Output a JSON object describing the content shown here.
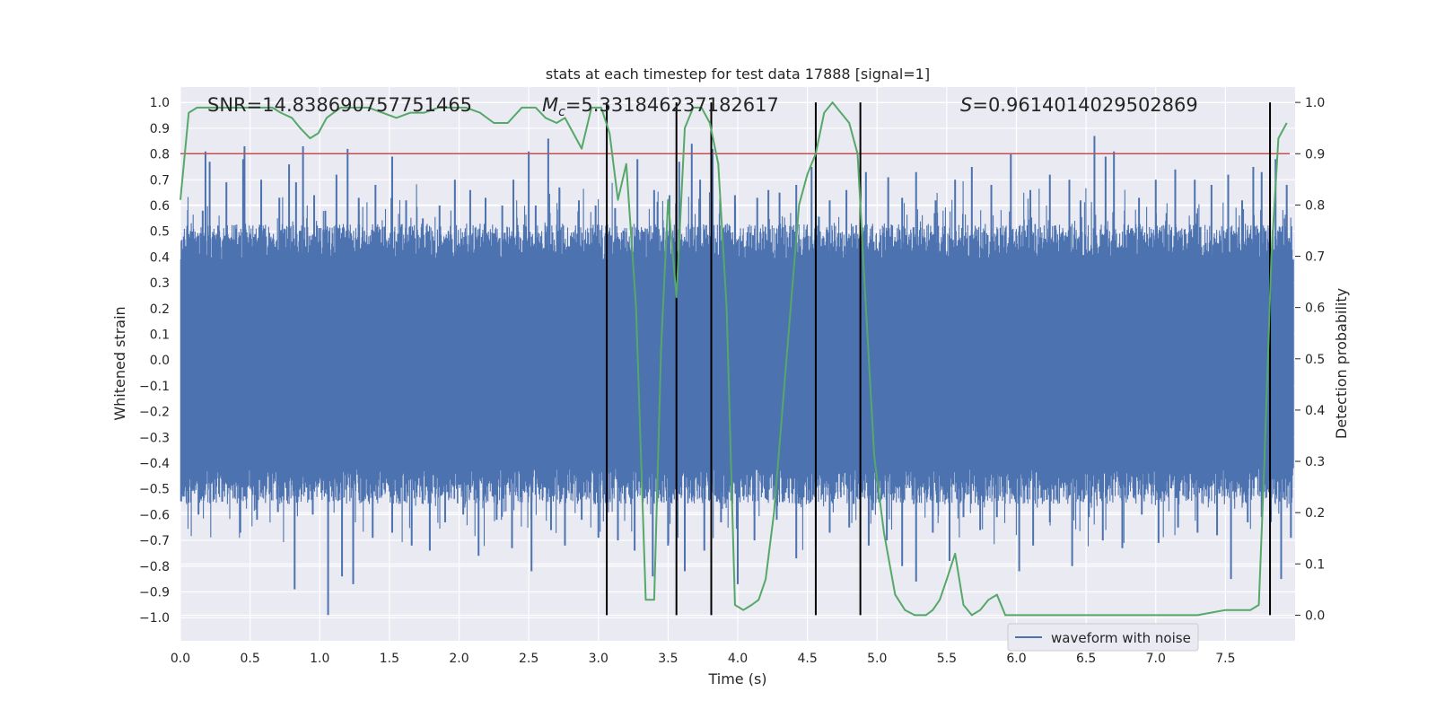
{
  "chart_data": {
    "type": "line",
    "title": "stats at each timestep for test data 17888 [signal=1]",
    "xlabel": "Time (s)",
    "ylabel_left": "Whitened strain",
    "ylabel_right": "Detection probability",
    "xlim": [
      0.0,
      8.0
    ],
    "ylim_left": [
      -1.09,
      1.06
    ],
    "ylim_right": [
      -0.05,
      1.03
    ],
    "x_ticks": [
      "0.0",
      "0.5",
      "1.0",
      "1.5",
      "2.0",
      "2.5",
      "3.0",
      "3.5",
      "4.0",
      "4.5",
      "5.0",
      "5.5",
      "6.0",
      "6.5",
      "7.0",
      "7.5"
    ],
    "x_tick_values": [
      0,
      0.5,
      1,
      1.5,
      2,
      2.5,
      3,
      3.5,
      4,
      4.5,
      5,
      5.5,
      6,
      6.5,
      7,
      7.5
    ],
    "y_left_ticks": [
      "1.0",
      "0.9",
      "0.8",
      "0.7",
      "0.6",
      "0.5",
      "0.4",
      "0.3",
      "0.2",
      "0.1",
      "0.0",
      "−0.1",
      "−0.2",
      "−0.3",
      "−0.4",
      "−0.5",
      "−0.6",
      "−0.7",
      "−0.8",
      "−0.9",
      "−1.0"
    ],
    "y_left_tick_values": [
      1.0,
      0.9,
      0.8,
      0.7,
      0.6,
      0.5,
      0.4,
      0.3,
      0.2,
      0.1,
      0.0,
      -0.1,
      -0.2,
      -0.3,
      -0.4,
      -0.5,
      -0.6,
      -0.7,
      -0.8,
      -0.9,
      -1.0
    ],
    "y_right_ticks": [
      "1.0",
      "0.9",
      "0.8",
      "0.7",
      "0.6",
      "0.5",
      "0.4",
      "0.3",
      "0.2",
      "0.1",
      "0.0"
    ],
    "y_right_tick_values": [
      1.0,
      0.9,
      0.8,
      0.7,
      0.6,
      0.5,
      0.4,
      0.3,
      0.2,
      0.1,
      0.0
    ],
    "stats": {
      "snr": "SNR=14.838690757751465",
      "mc_symbol": "M",
      "mc_sub": "c",
      "mc_value": "=5.331846237182617",
      "s_symbol": "S",
      "s_value": "=0.9614014029502869"
    },
    "threshold": {
      "value": 0.9,
      "axis": "right",
      "color": "#c44e52"
    },
    "event_lines_x": [
      3.06,
      3.56,
      3.81,
      4.56,
      4.88,
      7.82
    ],
    "series": [
      {
        "name": "waveform with noise",
        "axis": "left",
        "color": "#4c72b0",
        "kind": "noise-band",
        "core_range": [
          -0.42,
          0.39
        ],
        "peak_range": [
          -1.0,
          0.97
        ],
        "peaks": [
          [
            0.05,
            0.52
          ],
          [
            0.16,
            0.58
          ],
          [
            0.18,
            0.81
          ],
          [
            0.21,
            0.77
          ],
          [
            0.33,
            0.69
          ],
          [
            0.45,
            0.78
          ],
          [
            0.46,
            0.83
          ],
          [
            0.58,
            0.7
          ],
          [
            0.71,
            0.63
          ],
          [
            0.78,
            0.76
          ],
          [
            0.83,
            0.69
          ],
          [
            0.88,
            0.83
          ],
          [
            0.96,
            0.64
          ],
          [
            1.04,
            0.58
          ],
          [
            1.12,
            0.72
          ],
          [
            1.2,
            0.82
          ],
          [
            1.28,
            0.63
          ],
          [
            1.4,
            0.68
          ],
          [
            1.52,
            0.79
          ],
          [
            1.62,
            0.62
          ],
          [
            1.74,
            0.55
          ],
          [
            1.86,
            0.6
          ],
          [
            1.97,
            0.7
          ],
          [
            2.08,
            0.66
          ],
          [
            2.19,
            0.63
          ],
          [
            2.31,
            0.6
          ],
          [
            2.39,
            0.7
          ],
          [
            2.5,
            0.81
          ],
          [
            2.55,
            0.6
          ],
          [
            2.64,
            0.86
          ],
          [
            2.72,
            0.67
          ],
          [
            2.86,
            0.62
          ],
          [
            2.98,
            0.6
          ],
          [
            3.12,
            0.59
          ],
          [
            3.28,
            0.78
          ],
          [
            3.4,
            0.66
          ],
          [
            3.51,
            0.64
          ],
          [
            3.58,
            0.77
          ],
          [
            3.67,
            0.84
          ],
          [
            3.73,
            0.7
          ],
          [
            3.82,
            0.82
          ],
          [
            3.98,
            0.64
          ],
          [
            4.14,
            0.63
          ],
          [
            4.22,
            0.66
          ],
          [
            4.3,
            0.65
          ],
          [
            4.42,
            0.68
          ],
          [
            4.53,
            0.75
          ],
          [
            4.66,
            0.62
          ],
          [
            4.78,
            0.66
          ],
          [
            4.92,
            0.73
          ],
          [
            5.08,
            0.71
          ],
          [
            5.18,
            0.63
          ],
          [
            5.28,
            0.73
          ],
          [
            5.42,
            0.62
          ],
          [
            5.56,
            0.7
          ],
          [
            5.68,
            0.75
          ],
          [
            5.82,
            0.68
          ],
          [
            5.96,
            0.8
          ],
          [
            6.1,
            0.66
          ],
          [
            6.24,
            0.72
          ],
          [
            6.38,
            0.7
          ],
          [
            6.46,
            0.62
          ],
          [
            6.56,
            0.87
          ],
          [
            6.64,
            0.79
          ],
          [
            6.7,
            0.81
          ],
          [
            6.88,
            0.63
          ],
          [
            7.0,
            0.7
          ],
          [
            7.14,
            0.74
          ],
          [
            7.28,
            0.7
          ],
          [
            7.4,
            0.68
          ],
          [
            7.52,
            0.72
          ],
          [
            7.62,
            0.62
          ],
          [
            7.7,
            0.75
          ],
          [
            7.76,
            0.73
          ],
          [
            7.86,
            0.78
          ],
          [
            7.94,
            0.68
          ]
        ],
        "troughs": [
          [
            0.02,
            -0.53
          ],
          [
            0.13,
            -0.6
          ],
          [
            0.3,
            -0.55
          ],
          [
            0.43,
            -0.67
          ],
          [
            0.55,
            -0.62
          ],
          [
            0.7,
            -0.59
          ],
          [
            0.82,
            -0.89
          ],
          [
            0.95,
            -0.6
          ],
          [
            1.06,
            -0.99
          ],
          [
            1.16,
            -0.84
          ],
          [
            1.24,
            -0.87
          ],
          [
            1.38,
            -0.69
          ],
          [
            1.52,
            -0.67
          ],
          [
            1.66,
            -0.72
          ],
          [
            1.79,
            -0.74
          ],
          [
            1.9,
            -0.63
          ],
          [
            2.03,
            -0.6
          ],
          [
            2.14,
            -0.76
          ],
          [
            2.27,
            -0.62
          ],
          [
            2.38,
            -0.73
          ],
          [
            2.52,
            -0.82
          ],
          [
            2.66,
            -0.66
          ],
          [
            2.76,
            -0.72
          ],
          [
            2.88,
            -0.62
          ],
          [
            3.0,
            -0.69
          ],
          [
            3.14,
            -0.7
          ],
          [
            3.26,
            -0.74
          ],
          [
            3.39,
            -0.84
          ],
          [
            3.5,
            -0.72
          ],
          [
            3.62,
            -0.82
          ],
          [
            3.76,
            -0.74
          ],
          [
            3.88,
            -0.63
          ],
          [
            4.0,
            -0.87
          ],
          [
            4.12,
            -0.7
          ],
          [
            4.28,
            -0.62
          ],
          [
            4.42,
            -0.77
          ],
          [
            4.56,
            -0.73
          ],
          [
            4.66,
            -0.67
          ],
          [
            4.8,
            -0.65
          ],
          [
            4.94,
            -0.72
          ],
          [
            5.07,
            -0.7
          ],
          [
            5.18,
            -0.8
          ],
          [
            5.28,
            -0.86
          ],
          [
            5.4,
            -0.67
          ],
          [
            5.52,
            -0.78
          ],
          [
            5.62,
            -0.61
          ],
          [
            5.74,
            -0.66
          ],
          [
            5.86,
            -0.61
          ],
          [
            6.02,
            -0.82
          ],
          [
            6.12,
            -0.72
          ],
          [
            6.24,
            -0.63
          ],
          [
            6.4,
            -0.8
          ],
          [
            6.52,
            -0.61
          ],
          [
            6.62,
            -0.7
          ],
          [
            6.76,
            -0.73
          ],
          [
            6.9,
            -0.6
          ],
          [
            7.02,
            -0.71
          ],
          [
            7.16,
            -0.65
          ],
          [
            7.3,
            -0.67
          ],
          [
            7.44,
            -0.68
          ],
          [
            7.54,
            -0.85
          ],
          [
            7.66,
            -0.63
          ],
          [
            7.76,
            -0.61
          ],
          [
            7.9,
            -0.85
          ],
          [
            7.97,
            -0.69
          ]
        ]
      },
      {
        "name": "detection probability",
        "axis": "right",
        "color": "#55a868",
        "x": [
          0.0,
          0.06,
          0.12,
          0.2,
          0.35,
          0.55,
          0.66,
          0.72,
          0.8,
          0.86,
          0.93,
          0.99,
          1.05,
          1.15,
          1.35,
          1.45,
          1.55,
          1.65,
          1.75,
          1.85,
          1.95,
          2.05,
          2.15,
          2.25,
          2.35,
          2.45,
          2.55,
          2.62,
          2.7,
          2.76,
          2.82,
          2.88,
          2.95,
          3.02,
          3.08,
          3.14,
          3.2,
          3.27,
          3.34,
          3.4,
          3.45,
          3.5,
          3.56,
          3.62,
          3.68,
          3.74,
          3.8,
          3.86,
          3.92,
          3.98,
          4.04,
          4.1,
          4.15,
          4.2,
          4.26,
          4.32,
          4.38,
          4.44,
          4.5,
          4.56,
          4.62,
          4.68,
          4.74,
          4.8,
          4.86,
          4.92,
          4.98,
          5.05,
          5.13,
          5.2,
          5.27,
          5.35,
          5.4,
          5.45,
          5.5,
          5.56,
          5.62,
          5.68,
          5.74,
          5.8,
          5.86,
          5.92,
          6.0,
          6.1,
          6.3,
          6.6,
          7.0,
          7.3,
          7.5,
          7.55,
          7.62,
          7.68,
          7.74,
          7.78,
          7.83,
          7.88,
          7.94
        ],
        "values": [
          0.81,
          0.98,
          0.99,
          0.99,
          0.99,
          0.99,
          0.99,
          0.98,
          0.97,
          0.95,
          0.93,
          0.94,
          0.97,
          0.99,
          0.99,
          0.98,
          0.97,
          0.98,
          0.98,
          0.99,
          0.99,
          0.99,
          0.98,
          0.96,
          0.96,
          0.99,
          0.99,
          0.97,
          0.96,
          0.97,
          0.94,
          0.91,
          0.99,
          0.99,
          0.94,
          0.81,
          0.88,
          0.6,
          0.03,
          0.03,
          0.52,
          0.81,
          0.62,
          0.95,
          0.99,
          0.99,
          0.96,
          0.88,
          0.6,
          0.02,
          0.01,
          0.02,
          0.03,
          0.07,
          0.2,
          0.4,
          0.6,
          0.8,
          0.86,
          0.9,
          0.98,
          1.0,
          0.98,
          0.96,
          0.9,
          0.6,
          0.31,
          0.16,
          0.04,
          0.01,
          0.0,
          0.0,
          0.01,
          0.03,
          0.07,
          0.12,
          0.02,
          0.0,
          0.01,
          0.03,
          0.04,
          0.0,
          0.0,
          0.0,
          0.0,
          0.0,
          0.0,
          0.0,
          0.01,
          0.01,
          0.01,
          0.01,
          0.02,
          0.3,
          0.7,
          0.93,
          0.96
        ]
      }
    ],
    "legend": {
      "entries": [
        "waveform with noise"
      ],
      "placement": "lower-right"
    }
  }
}
